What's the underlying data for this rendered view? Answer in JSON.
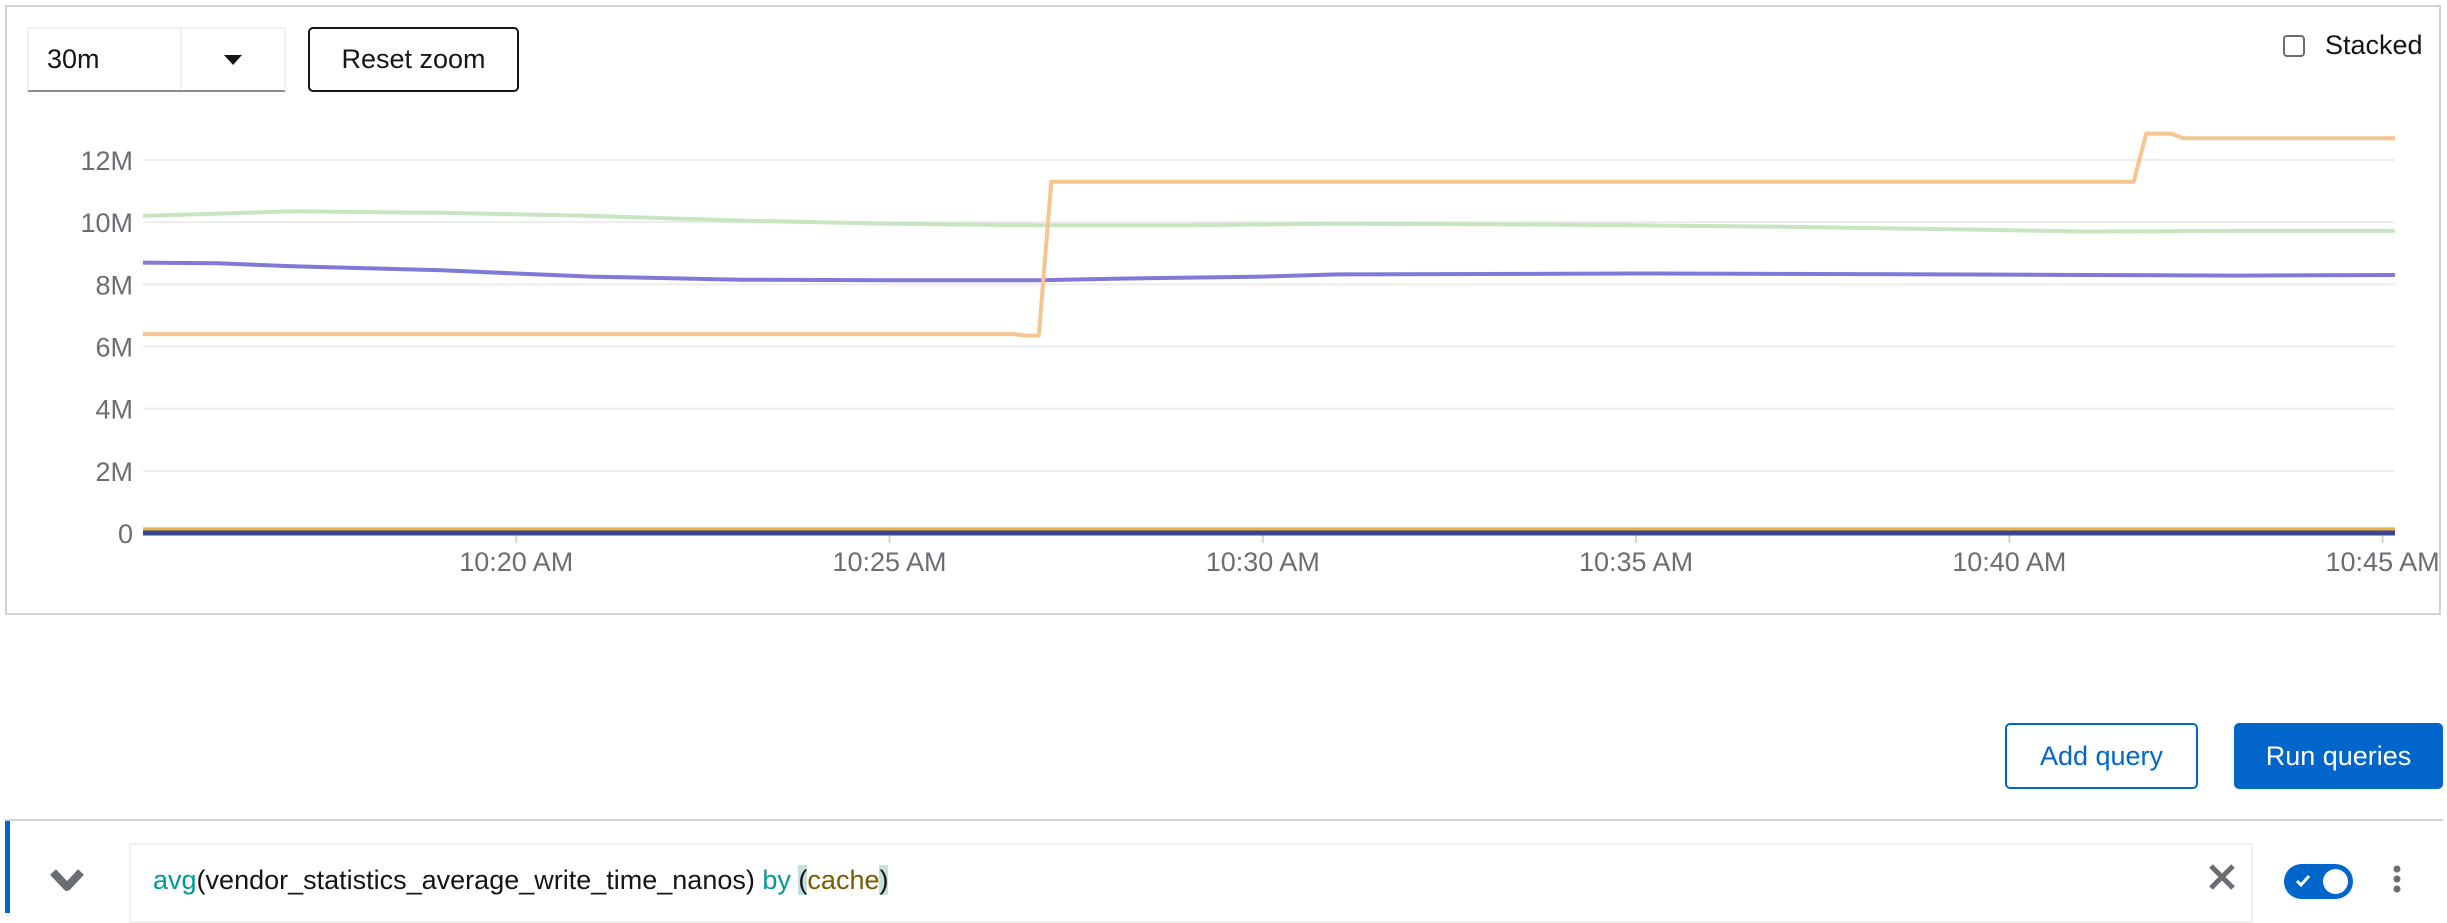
{
  "toolbar": {
    "range_value": "30m",
    "reset_zoom_label": "Reset zoom",
    "stacked_label": "Stacked",
    "stacked_checked": false
  },
  "actions": {
    "add_query_label": "Add query",
    "run_queries_label": "Run queries"
  },
  "query": {
    "expanded": true,
    "enabled": true,
    "text_parts": {
      "fn": "avg",
      "open": "(",
      "metric": "vendor_statistics_average_write_time_nanos",
      "close": ")",
      "by": "by",
      "lparen": "(",
      "label": "cache",
      "rparen": ")"
    },
    "icons": {
      "expand": "chevron-down-icon",
      "clear": "close-icon",
      "menu": "kebab-icon"
    }
  },
  "colors": {
    "accent": "#0066cc"
  },
  "chart_data": {
    "type": "line",
    "xlim": [
      "10:15:00",
      "10:45:10"
    ],
    "ylim": [
      0,
      13000000
    ],
    "yticks": [
      0,
      2000000,
      4000000,
      6000000,
      8000000,
      10000000,
      12000000
    ],
    "ytick_labels": [
      "0",
      "2M",
      "4M",
      "6M",
      "8M",
      "10M",
      "12M"
    ],
    "xticks": [
      "10:20:00",
      "10:25:00",
      "10:30:00",
      "10:35:00",
      "10:40:00",
      "10:45:00"
    ],
    "xtick_labels": [
      "10:20 AM",
      "10:25 AM",
      "10:30 AM",
      "10:35 AM",
      "10:40 AM",
      "10:45 AM"
    ],
    "grid": true,
    "legend": "none",
    "series": [
      {
        "color": "#c6e5c0",
        "points": [
          [
            "10:15:00",
            10200000
          ],
          [
            "10:17:00",
            10350000
          ],
          [
            "10:19:00",
            10300000
          ],
          [
            "10:21:00",
            10200000
          ],
          [
            "10:23:00",
            10050000
          ],
          [
            "10:25:00",
            9950000
          ],
          [
            "10:27:00",
            9900000
          ],
          [
            "10:29:00",
            9900000
          ],
          [
            "10:31:00",
            9950000
          ],
          [
            "10:33:00",
            9930000
          ],
          [
            "10:35:00",
            9900000
          ],
          [
            "10:37:00",
            9850000
          ],
          [
            "10:39:00",
            9780000
          ],
          [
            "10:41:00",
            9700000
          ],
          [
            "10:43:00",
            9720000
          ],
          [
            "10:45:10",
            9720000
          ]
        ]
      },
      {
        "color": "#7f7ada",
        "points": [
          [
            "10:15:00",
            8700000
          ],
          [
            "10:16:00",
            8680000
          ],
          [
            "10:17:00",
            8580000
          ],
          [
            "10:18:00",
            8520000
          ],
          [
            "10:19:00",
            8450000
          ],
          [
            "10:20:00",
            8350000
          ],
          [
            "10:21:00",
            8250000
          ],
          [
            "10:22:00",
            8200000
          ],
          [
            "10:23:00",
            8150000
          ],
          [
            "10:25:00",
            8130000
          ],
          [
            "10:27:00",
            8130000
          ],
          [
            "10:28:00",
            8180000
          ],
          [
            "10:30:00",
            8250000
          ],
          [
            "10:31:00",
            8320000
          ],
          [
            "10:35:00",
            8350000
          ],
          [
            "10:38:00",
            8330000
          ],
          [
            "10:41:00",
            8300000
          ],
          [
            "10:43:00",
            8280000
          ],
          [
            "10:45:10",
            8300000
          ]
        ]
      },
      {
        "color": "#f5c491",
        "points": [
          [
            "10:15:00",
            6400000
          ],
          [
            "10:26:40",
            6400000
          ],
          [
            "10:26:50",
            6350000
          ],
          [
            "10:27:00",
            6350000
          ],
          [
            "10:27:10",
            11300000
          ],
          [
            "10:41:40",
            11300000
          ],
          [
            "10:41:50",
            12850000
          ],
          [
            "10:42:10",
            12850000
          ],
          [
            "10:42:20",
            12700000
          ],
          [
            "10:45:10",
            12700000
          ]
        ]
      },
      {
        "color": "#e2b44a",
        "points": [
          [
            "10:15:00",
            100000
          ],
          [
            "10:45:10",
            100000
          ]
        ]
      },
      {
        "color": "#3a4592",
        "points": [
          [
            "10:15:00",
            0
          ],
          [
            "10:45:10",
            0
          ]
        ]
      }
    ]
  }
}
